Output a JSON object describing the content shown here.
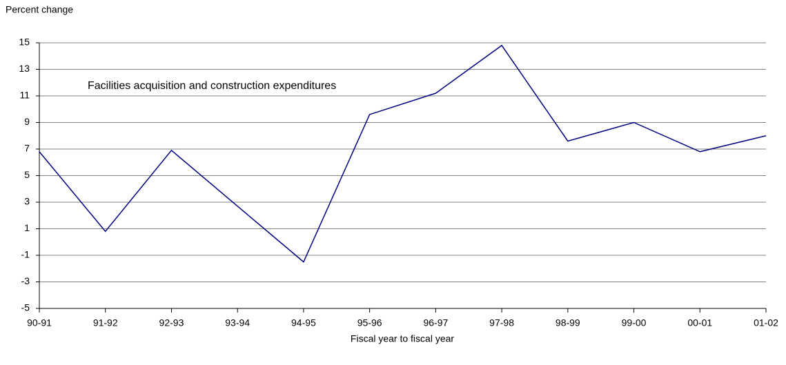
{
  "chart_data": {
    "type": "line",
    "title": "Percent change",
    "x_label": "Fiscal year to fiscal year",
    "annotation": "Facilities acquisition and construction expenditures",
    "categories": [
      "90-91",
      "91-92",
      "92-93",
      "93-94",
      "94-95",
      "95-96",
      "96-97",
      "97-98",
      "98-99",
      "99-00",
      "00-01",
      "01-02"
    ],
    "series": [
      {
        "color": "#000080",
        "values": [
          6.8,
          0.8,
          6.9,
          2.7,
          -1.5,
          9.6,
          11.2,
          14.8,
          7.6,
          9.0,
          6.8,
          8.0
        ]
      }
    ],
    "ylim": [
      -5,
      15
    ],
    "yticks": [
      -5,
      -3,
      -1,
      1,
      3,
      5,
      7,
      9,
      11,
      13,
      15
    ],
    "grid": true
  }
}
